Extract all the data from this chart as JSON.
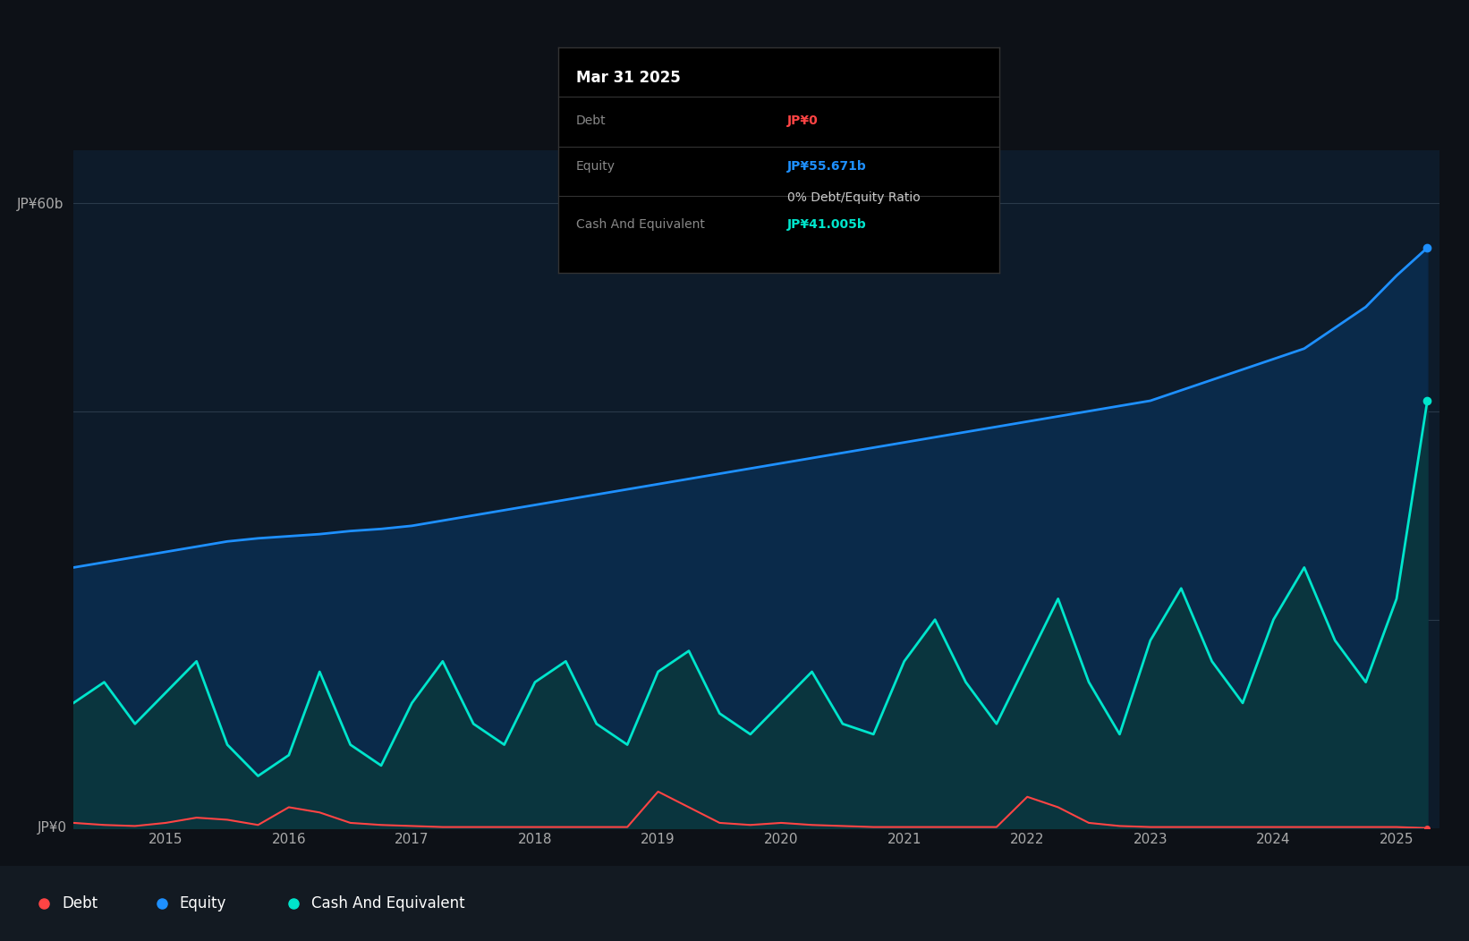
{
  "background_color": "#0d1117",
  "plot_bg_color": "#0d1b2a",
  "ytick_60b": "JP¥60b",
  "ytick_0": "JP¥0",
  "xlabel_ticks": [
    "2015",
    "2016",
    "2017",
    "2018",
    "2019",
    "2020",
    "2021",
    "2022",
    "2023",
    "2024",
    "2025"
  ],
  "equity_color": "#1e90ff",
  "equity_fill_color": "#0a2a4a",
  "cash_color": "#00e5cc",
  "cash_fill_color": "#0a3a3a",
  "debt_color": "#ff4444",
  "tooltip_bg": "#000000",
  "tooltip_border": "#333333",
  "tooltip_title": "Mar 31 2025",
  "tooltip_debt_label": "Debt",
  "tooltip_debt_value": "JP¥0",
  "tooltip_debt_value_color": "#ff4444",
  "tooltip_equity_label": "Equity",
  "tooltip_equity_value": "JP¥55.671b",
  "tooltip_equity_value_color": "#1e90ff",
  "tooltip_ratio_text": "0% Debt/Equity Ratio",
  "tooltip_ratio_color": "#cccccc",
  "tooltip_cash_label": "Cash And Equivalent",
  "tooltip_cash_value": "JP¥41.005b",
  "tooltip_cash_value_color": "#00e5cc",
  "legend_debt": "Debt",
  "legend_equity": "Equity",
  "legend_cash": "Cash And Equivalent",
  "legend_bg": "#131a22",
  "ylim_max": 65,
  "equity_dates": [
    2014.25,
    2014.5,
    2014.75,
    2015.0,
    2015.25,
    2015.5,
    2015.75,
    2016.0,
    2016.25,
    2016.5,
    2016.75,
    2017.0,
    2017.25,
    2017.5,
    2017.75,
    2018.0,
    2018.25,
    2018.5,
    2018.75,
    2019.0,
    2019.25,
    2019.5,
    2019.75,
    2020.0,
    2020.25,
    2020.5,
    2020.75,
    2021.0,
    2021.25,
    2021.5,
    2021.75,
    2022.0,
    2022.25,
    2022.5,
    2022.75,
    2023.0,
    2023.25,
    2023.5,
    2023.75,
    2024.0,
    2024.25,
    2024.5,
    2024.75,
    2025.0,
    2025.25
  ],
  "equity_values": [
    25,
    25.5,
    26,
    26.5,
    27,
    27.5,
    27.8,
    28,
    28.2,
    28.5,
    28.7,
    29,
    29.5,
    30,
    30.5,
    31,
    31.5,
    32,
    32.5,
    33,
    33.5,
    34,
    34.5,
    35,
    35.5,
    36,
    36.5,
    37,
    37.5,
    38,
    38.5,
    39,
    39.5,
    40,
    40.5,
    41,
    42,
    43,
    44,
    45,
    46,
    48,
    50,
    53,
    55.671
  ],
  "cash_dates": [
    2014.25,
    2014.5,
    2014.75,
    2015.0,
    2015.25,
    2015.5,
    2015.75,
    2016.0,
    2016.25,
    2016.5,
    2016.75,
    2017.0,
    2017.25,
    2017.5,
    2017.75,
    2018.0,
    2018.25,
    2018.5,
    2018.75,
    2019.0,
    2019.25,
    2019.5,
    2019.75,
    2020.0,
    2020.25,
    2020.5,
    2020.75,
    2021.0,
    2021.25,
    2021.5,
    2021.75,
    2022.0,
    2022.25,
    2022.5,
    2022.75,
    2023.0,
    2023.25,
    2023.5,
    2023.75,
    2024.0,
    2024.25,
    2024.5,
    2024.75,
    2025.0,
    2025.25
  ],
  "cash_values": [
    12,
    14,
    10,
    13,
    16,
    8,
    5,
    7,
    15,
    8,
    6,
    12,
    16,
    10,
    8,
    14,
    16,
    10,
    8,
    15,
    17,
    11,
    9,
    12,
    15,
    10,
    9,
    16,
    20,
    14,
    10,
    16,
    22,
    14,
    9,
    18,
    23,
    16,
    12,
    20,
    25,
    18,
    14,
    22,
    41.005
  ],
  "debt_dates": [
    2014.25,
    2014.5,
    2014.75,
    2015.0,
    2015.25,
    2015.5,
    2015.75,
    2016.0,
    2016.25,
    2016.5,
    2016.75,
    2017.0,
    2017.25,
    2017.5,
    2017.75,
    2018.0,
    2018.25,
    2018.5,
    2018.75,
    2019.0,
    2019.25,
    2019.5,
    2019.75,
    2020.0,
    2020.25,
    2020.5,
    2020.75,
    2021.0,
    2021.25,
    2021.5,
    2021.75,
    2022.0,
    2022.25,
    2022.5,
    2022.75,
    2023.0,
    2023.25,
    2023.5,
    2023.75,
    2024.0,
    2024.25,
    2024.5,
    2024.75,
    2025.0,
    2025.25
  ],
  "debt_values": [
    0.5,
    0.3,
    0.2,
    0.5,
    1.0,
    0.8,
    0.3,
    2.0,
    1.5,
    0.5,
    0.3,
    0.2,
    0.1,
    0.1,
    0.1,
    0.1,
    0.1,
    0.1,
    0.1,
    3.5,
    2.0,
    0.5,
    0.3,
    0.5,
    0.3,
    0.2,
    0.1,
    0.1,
    0.1,
    0.1,
    0.1,
    3.0,
    2.0,
    0.5,
    0.2,
    0.1,
    0.1,
    0.1,
    0.1,
    0.1,
    0.1,
    0.1,
    0.1,
    0.1,
    0.0
  ]
}
